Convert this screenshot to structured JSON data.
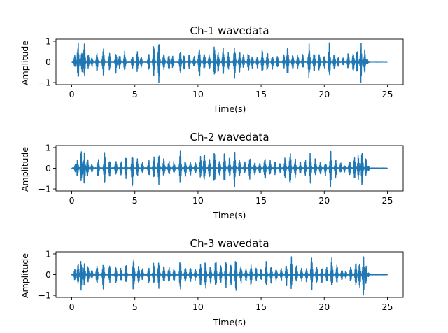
{
  "chart_data": [
    {
      "type": "line",
      "title": "Ch-1 wavedata",
      "xlabel": "Time(s)",
      "ylabel": "Amplitude",
      "xlim": [
        -1.25,
        26.25
      ],
      "ylim": [
        -1.1,
        1.1
      ],
      "xticks": [
        0,
        5,
        10,
        15,
        20,
        25
      ],
      "yticks": [
        -1,
        0,
        1
      ],
      "grid": false,
      "series": [
        {
          "color": "#1f77b4",
          "x_start": 0,
          "x_end": 25,
          "bursts": [
            {
              "t": 0.25,
              "amp": 0.35
            },
            {
              "t": 0.5,
              "amp": 1.0
            },
            {
              "t": 0.8,
              "amp": 0.55
            },
            {
              "t": 1.0,
              "amp": 1.0
            },
            {
              "t": 1.3,
              "amp": 0.45
            },
            {
              "t": 1.6,
              "amp": 0.25
            },
            {
              "t": 2.0,
              "amp": 0.5
            },
            {
              "t": 2.5,
              "amp": 0.8
            },
            {
              "t": 3.0,
              "amp": 0.45
            },
            {
              "t": 3.5,
              "amp": 0.55
            },
            {
              "t": 3.8,
              "amp": 0.4
            },
            {
              "t": 4.2,
              "amp": 0.55
            },
            {
              "t": 4.8,
              "amp": 0.35
            },
            {
              "t": 5.2,
              "amp": 0.55
            },
            {
              "t": 5.5,
              "amp": 0.3
            },
            {
              "t": 6.1,
              "amp": 0.45
            },
            {
              "t": 6.5,
              "amp": 0.8
            },
            {
              "t": 6.9,
              "amp": 1.0
            },
            {
              "t": 7.3,
              "amp": 0.55
            },
            {
              "t": 7.7,
              "amp": 0.45
            },
            {
              "t": 8.0,
              "amp": 0.3
            },
            {
              "t": 8.6,
              "amp": 0.6
            },
            {
              "t": 8.9,
              "amp": 0.45
            },
            {
              "t": 9.3,
              "amp": 0.4
            },
            {
              "t": 9.7,
              "amp": 0.3
            },
            {
              "t": 10.1,
              "amp": 0.9
            },
            {
              "t": 10.5,
              "amp": 0.5
            },
            {
              "t": 10.9,
              "amp": 0.4
            },
            {
              "t": 11.3,
              "amp": 0.9
            },
            {
              "t": 11.6,
              "amp": 0.55
            },
            {
              "t": 12.0,
              "amp": 0.7
            },
            {
              "t": 12.4,
              "amp": 0.45
            },
            {
              "t": 12.9,
              "amp": 0.85
            },
            {
              "t": 13.3,
              "amp": 0.5
            },
            {
              "t": 13.6,
              "amp": 0.35
            },
            {
              "t": 14.0,
              "amp": 0.55
            },
            {
              "t": 14.3,
              "amp": 0.35
            },
            {
              "t": 14.7,
              "amp": 0.3
            },
            {
              "t": 15.1,
              "amp": 0.65
            },
            {
              "t": 15.5,
              "amp": 0.55
            },
            {
              "t": 15.9,
              "amp": 0.4
            },
            {
              "t": 16.3,
              "amp": 0.35
            },
            {
              "t": 16.8,
              "amp": 0.35
            },
            {
              "t": 17.1,
              "amp": 0.8
            },
            {
              "t": 17.5,
              "amp": 0.5
            },
            {
              "t": 17.9,
              "amp": 0.35
            },
            {
              "t": 18.3,
              "amp": 0.4
            },
            {
              "t": 18.8,
              "amp": 0.9
            },
            {
              "t": 19.2,
              "amp": 0.55
            },
            {
              "t": 19.6,
              "amp": 0.45
            },
            {
              "t": 20.0,
              "amp": 0.35
            },
            {
              "t": 20.4,
              "amp": 0.95
            },
            {
              "t": 20.8,
              "amp": 0.5
            },
            {
              "t": 21.1,
              "amp": 0.3
            },
            {
              "t": 21.5,
              "amp": 0.2
            },
            {
              "t": 21.9,
              "amp": 0.45
            },
            {
              "t": 22.3,
              "amp": 0.55
            },
            {
              "t": 22.6,
              "amp": 0.7
            },
            {
              "t": 22.9,
              "amp": 1.0
            },
            {
              "t": 23.2,
              "amp": 0.6
            },
            {
              "t": 23.4,
              "amp": 0.15
            }
          ]
        }
      ]
    },
    {
      "type": "line",
      "title": "Ch-2 wavedata",
      "xlabel": "Time(s)",
      "ylabel": "Amplitude",
      "xlim": [
        -1.25,
        26.25
      ],
      "ylim": [
        -1.1,
        1.1
      ],
      "xticks": [
        0,
        5,
        10,
        15,
        20,
        25
      ],
      "yticks": [
        -1,
        0,
        1
      ],
      "grid": false,
      "series": [
        {
          "color": "#1f77b4",
          "x_start": 0,
          "x_end": 25,
          "bursts": [
            {
              "t": 0.3,
              "amp": 0.25
            },
            {
              "t": 0.45,
              "amp": 0.55
            },
            {
              "t": 0.75,
              "amp": 0.9
            },
            {
              "t": 1.0,
              "amp": 0.8
            },
            {
              "t": 1.25,
              "amp": 0.5
            },
            {
              "t": 1.6,
              "amp": 0.25
            },
            {
              "t": 2.1,
              "amp": 0.55
            },
            {
              "t": 2.6,
              "amp": 0.8
            },
            {
              "t": 3.0,
              "amp": 0.45
            },
            {
              "t": 3.5,
              "amp": 0.5
            },
            {
              "t": 3.9,
              "amp": 0.35
            },
            {
              "t": 4.3,
              "amp": 0.55
            },
            {
              "t": 4.8,
              "amp": 0.95
            },
            {
              "t": 5.2,
              "amp": 0.5
            },
            {
              "t": 5.6,
              "amp": 0.3
            },
            {
              "t": 6.1,
              "amp": 0.45
            },
            {
              "t": 6.5,
              "amp": 0.6
            },
            {
              "t": 6.9,
              "amp": 0.85
            },
            {
              "t": 7.3,
              "amp": 0.5
            },
            {
              "t": 7.7,
              "amp": 0.4
            },
            {
              "t": 8.1,
              "amp": 0.35
            },
            {
              "t": 8.6,
              "amp": 0.85
            },
            {
              "t": 9.0,
              "amp": 0.45
            },
            {
              "t": 9.4,
              "amp": 0.4
            },
            {
              "t": 9.8,
              "amp": 0.3
            },
            {
              "t": 10.2,
              "amp": 0.6
            },
            {
              "t": 10.5,
              "amp": 0.9
            },
            {
              "t": 10.9,
              "amp": 0.5
            },
            {
              "t": 11.3,
              "amp": 0.85
            },
            {
              "t": 11.7,
              "amp": 0.5
            },
            {
              "t": 12.1,
              "amp": 0.8
            },
            {
              "t": 12.5,
              "amp": 0.55
            },
            {
              "t": 12.9,
              "amp": 0.95
            },
            {
              "t": 13.3,
              "amp": 0.5
            },
            {
              "t": 13.7,
              "amp": 0.35
            },
            {
              "t": 14.1,
              "amp": 0.55
            },
            {
              "t": 14.5,
              "amp": 0.35
            },
            {
              "t": 14.9,
              "amp": 0.35
            },
            {
              "t": 15.3,
              "amp": 0.7
            },
            {
              "t": 15.7,
              "amp": 0.45
            },
            {
              "t": 16.1,
              "amp": 0.35
            },
            {
              "t": 16.5,
              "amp": 0.3
            },
            {
              "t": 16.9,
              "amp": 0.55
            },
            {
              "t": 17.3,
              "amp": 0.9
            },
            {
              "t": 17.7,
              "amp": 0.5
            },
            {
              "t": 18.1,
              "amp": 0.35
            },
            {
              "t": 18.5,
              "amp": 0.4
            },
            {
              "t": 18.9,
              "amp": 0.85
            },
            {
              "t": 19.3,
              "amp": 0.5
            },
            {
              "t": 19.7,
              "amp": 0.4
            },
            {
              "t": 20.1,
              "amp": 0.35
            },
            {
              "t": 20.5,
              "amp": 0.9
            },
            {
              "t": 20.9,
              "amp": 0.5
            },
            {
              "t": 21.3,
              "amp": 0.3
            },
            {
              "t": 21.6,
              "amp": 0.2
            },
            {
              "t": 22.0,
              "amp": 0.45
            },
            {
              "t": 22.4,
              "amp": 0.55
            },
            {
              "t": 22.7,
              "amp": 0.7
            },
            {
              "t": 23.0,
              "amp": 0.95
            },
            {
              "t": 23.3,
              "amp": 0.5
            },
            {
              "t": 23.5,
              "amp": 0.12
            }
          ]
        }
      ]
    },
    {
      "type": "line",
      "title": "Ch-3 wavedata",
      "xlabel": "Time(s)",
      "ylabel": "Amplitude",
      "xlim": [
        -1.25,
        26.25
      ],
      "ylim": [
        -1.1,
        1.1
      ],
      "xticks": [
        0,
        5,
        10,
        15,
        20,
        25
      ],
      "yticks": [
        -1,
        0,
        1
      ],
      "grid": false,
      "series": [
        {
          "color": "#1f77b4",
          "x_start": 0,
          "x_end": 25,
          "bursts": [
            {
              "t": 0.25,
              "amp": 0.3
            },
            {
              "t": 0.5,
              "amp": 0.6
            },
            {
              "t": 0.75,
              "amp": 0.8
            },
            {
              "t": 1.0,
              "amp": 0.55
            },
            {
              "t": 1.3,
              "amp": 0.45
            },
            {
              "t": 1.6,
              "amp": 0.25
            },
            {
              "t": 2.0,
              "amp": 0.55
            },
            {
              "t": 2.5,
              "amp": 0.75
            },
            {
              "t": 3.0,
              "amp": 0.45
            },
            {
              "t": 3.5,
              "amp": 0.5
            },
            {
              "t": 3.9,
              "amp": 0.35
            },
            {
              "t": 4.3,
              "amp": 0.55
            },
            {
              "t": 4.9,
              "amp": 1.0
            },
            {
              "t": 5.3,
              "amp": 0.5
            },
            {
              "t": 5.6,
              "amp": 0.3
            },
            {
              "t": 6.1,
              "amp": 0.45
            },
            {
              "t": 6.5,
              "amp": 0.6
            },
            {
              "t": 6.9,
              "amp": 0.8
            },
            {
              "t": 7.3,
              "amp": 0.5
            },
            {
              "t": 7.7,
              "amp": 0.4
            },
            {
              "t": 8.1,
              "amp": 0.35
            },
            {
              "t": 8.6,
              "amp": 0.85
            },
            {
              "t": 9.0,
              "amp": 0.45
            },
            {
              "t": 9.4,
              "amp": 0.4
            },
            {
              "t": 9.8,
              "amp": 0.3
            },
            {
              "t": 10.2,
              "amp": 0.6
            },
            {
              "t": 10.6,
              "amp": 0.8
            },
            {
              "t": 11.0,
              "amp": 0.5
            },
            {
              "t": 11.4,
              "amp": 0.85
            },
            {
              "t": 11.8,
              "amp": 0.5
            },
            {
              "t": 12.2,
              "amp": 0.75
            },
            {
              "t": 12.6,
              "amp": 0.55
            },
            {
              "t": 13.0,
              "amp": 1.0
            },
            {
              "t": 13.4,
              "amp": 0.5
            },
            {
              "t": 13.8,
              "amp": 0.35
            },
            {
              "t": 14.2,
              "amp": 0.55
            },
            {
              "t": 14.6,
              "amp": 0.35
            },
            {
              "t": 15.0,
              "amp": 0.35
            },
            {
              "t": 15.4,
              "amp": 0.7
            },
            {
              "t": 15.8,
              "amp": 0.45
            },
            {
              "t": 16.2,
              "amp": 0.35
            },
            {
              "t": 16.6,
              "amp": 0.3
            },
            {
              "t": 17.0,
              "amp": 0.6
            },
            {
              "t": 17.4,
              "amp": 0.9
            },
            {
              "t": 17.8,
              "amp": 0.5
            },
            {
              "t": 18.2,
              "amp": 0.35
            },
            {
              "t": 18.6,
              "amp": 0.4
            },
            {
              "t": 19.0,
              "amp": 0.85
            },
            {
              "t": 19.4,
              "amp": 0.5
            },
            {
              "t": 19.8,
              "amp": 0.4
            },
            {
              "t": 20.2,
              "amp": 0.35
            },
            {
              "t": 20.6,
              "amp": 0.85
            },
            {
              "t": 21.0,
              "amp": 0.5
            },
            {
              "t": 21.4,
              "amp": 0.3
            },
            {
              "t": 21.7,
              "amp": 0.2
            },
            {
              "t": 22.1,
              "amp": 0.45
            },
            {
              "t": 22.5,
              "amp": 0.6
            },
            {
              "t": 22.8,
              "amp": 0.75
            },
            {
              "t": 23.1,
              "amp": 1.0
            },
            {
              "t": 23.3,
              "amp": 0.5
            },
            {
              "t": 23.5,
              "amp": 0.12
            }
          ]
        }
      ]
    }
  ]
}
